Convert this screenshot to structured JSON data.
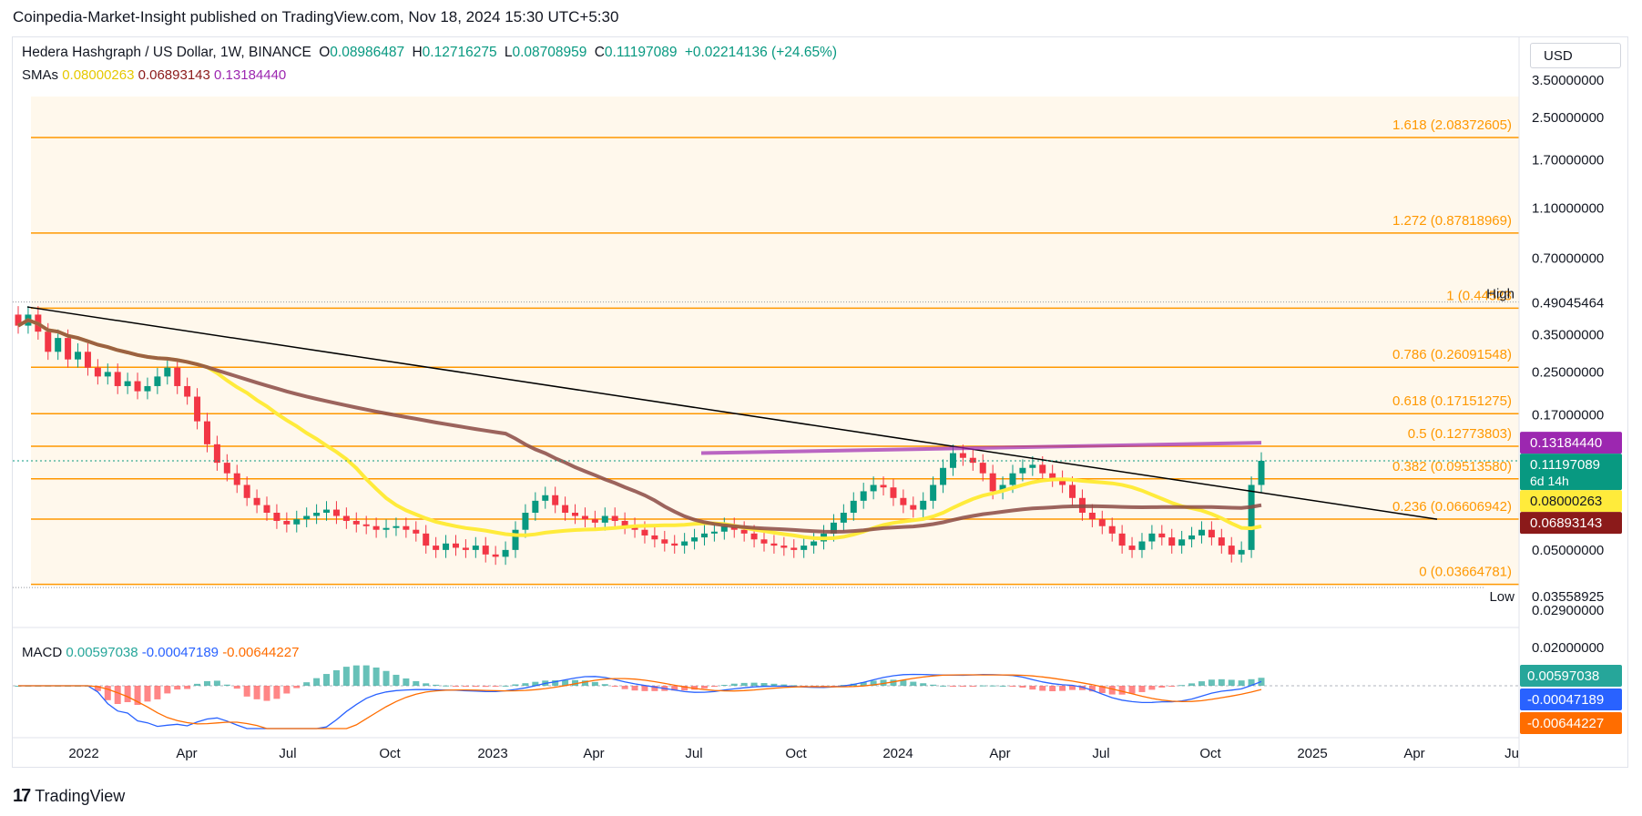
{
  "publisher": "Coinpedia-Market-Insight published on TradingView.com, Nov 18, 2024 15:30 UTC+5:30",
  "symbol": {
    "title": "Hedera Hashgraph / US Dollar, 1W, BINANCE",
    "open_label": "O",
    "open": "0.08986487",
    "high_label": "H",
    "high": "0.12716275",
    "low_label": "L",
    "low": "0.08708959",
    "close_label": "C",
    "close": "0.11197089",
    "change": "+0.02214136 (+24.65%)"
  },
  "sma": {
    "label": "SMAs",
    "v1": "0.08000263",
    "v2": "0.06893143",
    "v3": "0.13184440",
    "c1": "#ffeb3b",
    "c2": "#8b2b2b",
    "c3": "#9c27b0"
  },
  "macd": {
    "label": "MACD",
    "hist": "0.00597038",
    "macd": "-0.00047189",
    "signal": "-0.00644227",
    "axis_top": "0.02000000"
  },
  "currency_button": "USD",
  "brand": "TradingView",
  "colors": {
    "up": "#089981",
    "down": "#f23645",
    "fib": "#ff9800",
    "trend": "#000000"
  },
  "chart_data": {
    "type": "candlestick",
    "scale": "log",
    "ylim": [
      0.029,
      3.5
    ],
    "price_axis_ticks": [
      "3.50000000",
      "2.50000000",
      "1.70000000",
      "1.10000000",
      "0.70000000",
      "0.49045464",
      "0.35000000",
      "0.25000000",
      "0.17000000",
      "0.11197089",
      "0.08000263",
      "0.06893143",
      "0.05000000",
      "0.02900000"
    ],
    "time_axis_ticks": [
      "2022",
      "Apr",
      "Jul",
      "Oct",
      "2023",
      "Apr",
      "Jul",
      "Oct",
      "2024",
      "Apr",
      "Jul",
      "Oct",
      "2025",
      "Apr",
      "Ju"
    ],
    "fib_levels": [
      {
        "label": "1.618 (2.08372605)",
        "price": 2.08372605
      },
      {
        "label": "1.272 (0.87818969)",
        "price": 0.87818969
      },
      {
        "label": "1 (0.44523",
        "price": 0.44523
      },
      {
        "label": "0.786 (0.26091548)",
        "price": 0.26091548
      },
      {
        "label": "0.618 (0.17151275)",
        "price": 0.17151275
      },
      {
        "label": "0.5 (0.12773803)",
        "price": 0.12773803
      },
      {
        "label": "0.382 (0.09513580)",
        "price": 0.0951358
      },
      {
        "label": "0.236 (0.06606942)",
        "price": 0.06606942
      },
      {
        "label": "0 (0.03664781)",
        "price": 0.03664781
      }
    ],
    "high_marker": {
      "label": "High",
      "price": "0.49045464"
    },
    "low_marker": {
      "label": "Low",
      "price": "0.03558925"
    },
    "price_tags": [
      {
        "value": "0.13184440",
        "color": "#9c27b0",
        "text": "#ffffff"
      },
      {
        "value": "0.11197089",
        "sub": "6d 14h",
        "color": "#089981",
        "text": "#ffffff"
      },
      {
        "value": "0.08000263",
        "color": "#ffeb3b",
        "text": "#131722"
      },
      {
        "value": "0.06893143",
        "color": "#8b1a1a",
        "text": "#ffffff"
      }
    ],
    "macd_tags": [
      {
        "value": "0.00597038",
        "color": "#26a69a"
      },
      {
        "value": "-0.00047189",
        "color": "#2962ff"
      },
      {
        "value": "-0.00644227",
        "color": "#ff6d00"
      }
    ],
    "candles_close": [
      0.38,
      0.42,
      0.36,
      0.3,
      0.34,
      0.28,
      0.3,
      0.26,
      0.24,
      0.25,
      0.22,
      0.23,
      0.21,
      0.22,
      0.24,
      0.26,
      0.22,
      0.2,
      0.16,
      0.13,
      0.11,
      0.1,
      0.09,
      0.08,
      0.075,
      0.07,
      0.065,
      0.063,
      0.066,
      0.068,
      0.07,
      0.072,
      0.068,
      0.065,
      0.063,
      0.062,
      0.06,
      0.061,
      0.062,
      0.06,
      0.058,
      0.052,
      0.05,
      0.053,
      0.051,
      0.05,
      0.052,
      0.048,
      0.047,
      0.05,
      0.06,
      0.07,
      0.078,
      0.082,
      0.075,
      0.07,
      0.068,
      0.066,
      0.064,
      0.068,
      0.065,
      0.062,
      0.06,
      0.057,
      0.055,
      0.053,
      0.052,
      0.054,
      0.056,
      0.058,
      0.059,
      0.062,
      0.06,
      0.058,
      0.055,
      0.053,
      0.052,
      0.051,
      0.05,
      0.052,
      0.054,
      0.058,
      0.064,
      0.07,
      0.078,
      0.085,
      0.09,
      0.088,
      0.08,
      0.075,
      0.072,
      0.078,
      0.09,
      0.105,
      0.12,
      0.115,
      0.11,
      0.1,
      0.085,
      0.09,
      0.1,
      0.105,
      0.108,
      0.1,
      0.095,
      0.09,
      0.08,
      0.07,
      0.066,
      0.062,
      0.058,
      0.052,
      0.05,
      0.054,
      0.058,
      0.056,
      0.052,
      0.055,
      0.057,
      0.06,
      0.056,
      0.052,
      0.048,
      0.05,
      0.09,
      0.11197
    ]
  }
}
